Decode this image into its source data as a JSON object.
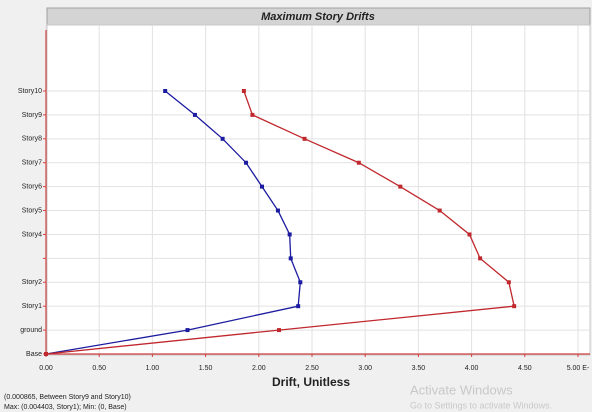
{
  "chart_data": {
    "type": "line",
    "title": "Maximum Story Drifts",
    "x_label": "Drift, Unitless",
    "categories": [
      "Base",
      "ground",
      "Story1",
      "Story2",
      null,
      "Story4",
      "Story5",
      "Story6",
      "Story7",
      "Story8",
      "Story9",
      "Story10"
    ],
    "series": [
      {
        "color": "#1c1ca0",
        "values": [
          0,
          1.33,
          2.37,
          2.39,
          2.3,
          2.29,
          2.18,
          2.03,
          1.88,
          1.66,
          1.4,
          1.12
        ]
      },
      {
        "color": "#c0282d",
        "values": [
          0,
          2.19,
          4.4,
          4.35,
          4.08,
          3.98,
          3.7,
          3.33,
          2.94,
          2.43,
          1.94,
          1.86
        ]
      }
    ],
    "xlim": [
      0,
      5
    ],
    "xticks": [
      {
        "value": 0,
        "label": "0.00"
      },
      {
        "value": 0.5,
        "label": "0.50"
      },
      {
        "value": 1,
        "label": "1.00"
      },
      {
        "value": 1.5,
        "label": "1.50"
      },
      {
        "value": 2,
        "label": "2.00"
      },
      {
        "value": 2.5,
        "label": "2.50"
      },
      {
        "value": 3,
        "label": "3.00"
      },
      {
        "value": 3.5,
        "label": "3.50"
      },
      {
        "value": 4,
        "label": "4.00"
      },
      {
        "value": 4.5,
        "label": "4.50"
      },
      {
        "value": 5,
        "label": "5.00 E-"
      }
    ],
    "grid": true,
    "status_lines": [
      "(0.000865, Between Story9 and Story10)",
      "Max: (0.004403, Story1);   Min: (0, Base)"
    ],
    "watermark": [
      "Activate Windows",
      "Go to Settings to activate Windows."
    ]
  }
}
